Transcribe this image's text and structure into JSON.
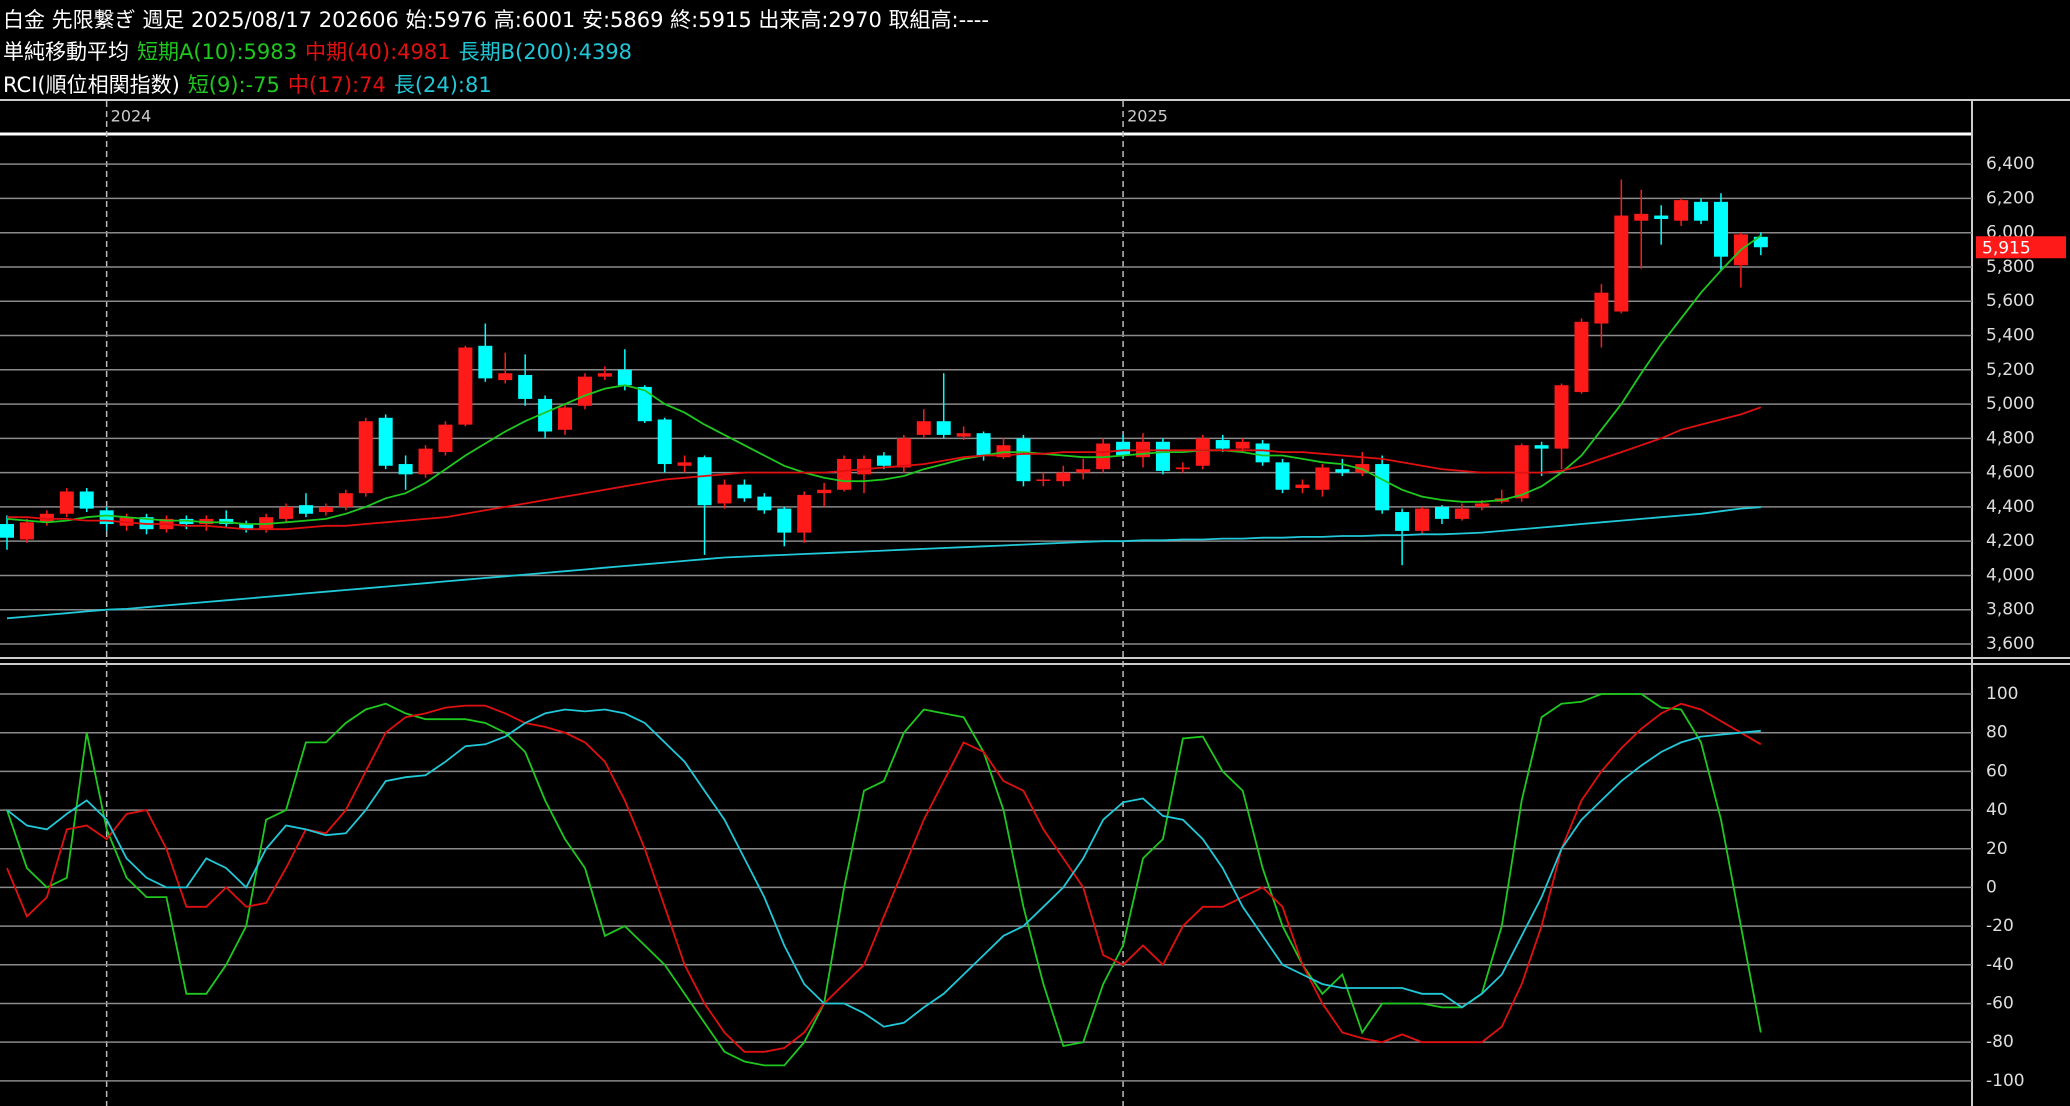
{
  "chart_data": [
    {
      "type": "candlestick",
      "title": "白金 先限繋ぎ 週足 2025/08/17 202606 始:5976 高:6001 安:5869 終:5915 出来高:2970 取組高:----",
      "legend_title": "単純移動平均",
      "categories": [
        null,
        null,
        null,
        null,
        null,
        "2024",
        null,
        null,
        null,
        null,
        null,
        null,
        null,
        null,
        null,
        null,
        null,
        null,
        null,
        null,
        null,
        null,
        null,
        null,
        null,
        null,
        null,
        null,
        null,
        null,
        null,
        null,
        null,
        null,
        null,
        null,
        null,
        null,
        null,
        null,
        null,
        null,
        null,
        null,
        null,
        null,
        null,
        null,
        null,
        null,
        null,
        null,
        null,
        null,
        null,
        null,
        "2025",
        null,
        null,
        null,
        null,
        null,
        null,
        null,
        null,
        null,
        null,
        null,
        null,
        null,
        null,
        null,
        null,
        null,
        null,
        null,
        null,
        null,
        null,
        null,
        null,
        null,
        null,
        null,
        null,
        null,
        null,
        null,
        null
      ],
      "open": [
        4300,
        4210,
        4310,
        4360,
        4490,
        4380,
        4290,
        4340,
        4270,
        4330,
        4300,
        4330,
        4300,
        4270,
        4330,
        4410,
        4370,
        4400,
        4480,
        4920,
        4650,
        4590,
        4720,
        4880,
        5340,
        5140,
        5170,
        5030,
        4850,
        4990,
        5160,
        5200,
        5100,
        4910,
        4640,
        4690,
        4420,
        4530,
        4460,
        4390,
        4250,
        4480,
        4500,
        4590,
        4700,
        4630,
        4820,
        4900,
        4810,
        4830,
        4690,
        4800,
        4560,
        4550,
        4600,
        4620,
        4780,
        4690,
        4780,
        4620,
        4640,
        4790,
        4740,
        4770,
        4660,
        4510,
        4500,
        4620,
        4600,
        4650,
        4370,
        4260,
        4400,
        4330,
        4400,
        4430,
        4450,
        4760,
        4740,
        5070,
        5470,
        5540,
        6070,
        6100,
        6070,
        6180,
        6180,
        5810,
        5976
      ],
      "high": [
        4350,
        4330,
        4380,
        4510,
        4510,
        4400,
        4360,
        4360,
        4350,
        4350,
        4350,
        4380,
        4320,
        4360,
        4420,
        4480,
        4420,
        4500,
        4920,
        4940,
        4700,
        4760,
        4900,
        5340,
        5470,
        5300,
        5290,
        5050,
        5000,
        5180,
        5220,
        5320,
        5110,
        4920,
        4700,
        4700,
        4560,
        4560,
        4480,
        4400,
        4490,
        4540,
        4700,
        4700,
        4720,
        4820,
        4970,
        5180,
        4870,
        4840,
        4800,
        4820,
        4600,
        4640,
        4680,
        4800,
        4820,
        4830,
        4800,
        4660,
        4820,
        4820,
        4800,
        4790,
        4680,
        4560,
        4650,
        4680,
        4720,
        4700,
        4390,
        4400,
        4410,
        4420,
        4440,
        4500,
        4770,
        4780,
        5120,
        5500,
        5700,
        6310,
        6250,
        6160,
        6200,
        6200,
        6230,
        6000,
        6001
      ],
      "low": [
        4150,
        4190,
        4290,
        4340,
        4370,
        4260,
        4260,
        4240,
        4250,
        4270,
        4260,
        4280,
        4250,
        4250,
        4310,
        4340,
        4350,
        4380,
        4460,
        4620,
        4500,
        4570,
        4700,
        4870,
        5130,
        5120,
        4990,
        4800,
        4820,
        4970,
        5140,
        5080,
        4890,
        4600,
        4600,
        4120,
        4390,
        4430,
        4360,
        4170,
        4190,
        4400,
        4490,
        4480,
        4620,
        4600,
        4800,
        4800,
        4790,
        4670,
        4680,
        4520,
        4520,
        4520,
        4560,
        4600,
        4680,
        4630,
        4590,
        4600,
        4620,
        4720,
        4720,
        4640,
        4480,
        4480,
        4460,
        4580,
        4580,
        4360,
        4060,
        4240,
        4300,
        4320,
        4380,
        4420,
        4430,
        4580,
        4620,
        5060,
        5330,
        5530,
        5790,
        5930,
        6040,
        6050,
        5780,
        5680,
        5869
      ],
      "close": [
        4220,
        4310,
        4360,
        4490,
        4390,
        4300,
        4340,
        4270,
        4330,
        4300,
        4330,
        4300,
        4270,
        4340,
        4400,
        4360,
        4400,
        4480,
        4900,
        4640,
        4590,
        4740,
        4880,
        5330,
        5150,
        5180,
        5030,
        4840,
        4980,
        5160,
        5180,
        5110,
        4900,
        4650,
        4660,
        4410,
        4530,
        4450,
        4380,
        4250,
        4470,
        4500,
        4680,
        4680,
        4640,
        4800,
        4900,
        4820,
        4830,
        4700,
        4760,
        4550,
        4560,
        4600,
        4620,
        4770,
        4700,
        4780,
        4610,
        4630,
        4800,
        4740,
        4780,
        4660,
        4500,
        4530,
        4630,
        4600,
        4650,
        4380,
        4260,
        4390,
        4330,
        4390,
        4420,
        4450,
        4760,
        4740,
        5110,
        5480,
        5650,
        6100,
        6110,
        6080,
        6190,
        6070,
        5860,
        5990,
        5915
      ],
      "up_color": "#ff1a1a",
      "down_color": "#00ffff",
      "last_label": "5,915",
      "last_color": "#ff1a1a",
      "series": [
        {
          "name": "短期A(10):5983",
          "color": "#1ec81e",
          "values": [
            4330,
            4320,
            4310,
            4320,
            4340,
            4350,
            4340,
            4330,
            4320,
            4320,
            4310,
            4310,
            4300,
            4300,
            4310,
            4320,
            4330,
            4360,
            4400,
            4450,
            4480,
            4540,
            4620,
            4700,
            4770,
            4840,
            4900,
            4950,
            5000,
            5050,
            5090,
            5110,
            5080,
            5000,
            4950,
            4880,
            4820,
            4760,
            4700,
            4640,
            4600,
            4570,
            4550,
            4550,
            4560,
            4580,
            4620,
            4650,
            4680,
            4700,
            4720,
            4720,
            4710,
            4700,
            4690,
            4690,
            4700,
            4710,
            4720,
            4720,
            4730,
            4730,
            4720,
            4700,
            4700,
            4680,
            4660,
            4650,
            4620,
            4560,
            4500,
            4460,
            4440,
            4430,
            4430,
            4440,
            4470,
            4520,
            4600,
            4700,
            4850,
            5000,
            5180,
            5350,
            5500,
            5650,
            5780,
            5900,
            5983
          ]
        },
        {
          "name": "中期(40):4981",
          "color": "#e01010",
          "values": [
            4340,
            4340,
            4330,
            4330,
            4320,
            4320,
            4310,
            4300,
            4300,
            4290,
            4290,
            4280,
            4270,
            4270,
            4270,
            4280,
            4290,
            4290,
            4300,
            4310,
            4320,
            4330,
            4340,
            4360,
            4380,
            4400,
            4420,
            4440,
            4460,
            4480,
            4500,
            4520,
            4540,
            4560,
            4570,
            4580,
            4590,
            4600,
            4600,
            4600,
            4600,
            4600,
            4610,
            4620,
            4630,
            4640,
            4650,
            4670,
            4690,
            4700,
            4700,
            4710,
            4710,
            4720,
            4720,
            4720,
            4730,
            4730,
            4730,
            4730,
            4730,
            4730,
            4730,
            4730,
            4720,
            4720,
            4710,
            4700,
            4690,
            4680,
            4660,
            4640,
            4620,
            4610,
            4600,
            4600,
            4600,
            4600,
            4610,
            4640,
            4680,
            4720,
            4760,
            4800,
            4850,
            4880,
            4910,
            4940,
            4981
          ]
        },
        {
          "name": "長期B(200):4398",
          "color": "#20c8d8",
          "values": [
            3750,
            3760,
            3770,
            3780,
            3790,
            3800,
            3805,
            3815,
            3825,
            3835,
            3845,
            3855,
            3865,
            3875,
            3885,
            3895,
            3905,
            3915,
            3925,
            3935,
            3945,
            3955,
            3965,
            3975,
            3985,
            3995,
            4005,
            4015,
            4025,
            4035,
            4045,
            4055,
            4065,
            4075,
            4085,
            4095,
            4105,
            4110,
            4115,
            4120,
            4125,
            4130,
            4135,
            4140,
            4145,
            4150,
            4155,
            4160,
            4165,
            4170,
            4175,
            4180,
            4185,
            4190,
            4195,
            4200,
            4200,
            4205,
            4205,
            4210,
            4210,
            4215,
            4215,
            4220,
            4220,
            4225,
            4225,
            4230,
            4230,
            4235,
            4235,
            4240,
            4240,
            4245,
            4250,
            4260,
            4270,
            4280,
            4290,
            4300,
            4310,
            4320,
            4330,
            4340,
            4350,
            4360,
            4375,
            4390,
            4398
          ]
        }
      ],
      "ylim": [
        3530,
        6570
      ],
      "yticks": [
        {
          "value": 3600,
          "label": "3,600"
        },
        {
          "value": 3800,
          "label": "3,800"
        },
        {
          "value": 4000,
          "label": "4,000"
        },
        {
          "value": 4200,
          "label": "4,200"
        },
        {
          "value": 4400,
          "label": "4,400"
        },
        {
          "value": 4600,
          "label": "4,600"
        },
        {
          "value": 4800,
          "label": "4,800"
        },
        {
          "value": 5000,
          "label": "5,000"
        },
        {
          "value": 5200,
          "label": "5,200"
        },
        {
          "value": 5400,
          "label": "5,400"
        },
        {
          "value": 5600,
          "label": "5,600"
        },
        {
          "value": 5800,
          "label": "5,800"
        },
        {
          "value": 6000,
          "label": "6,000"
        },
        {
          "value": 6200,
          "label": "6,200"
        },
        {
          "value": 6400,
          "label": "6,400"
        }
      ],
      "grid": true
    },
    {
      "type": "line",
      "legend_title": "RCI(順位相関指数)",
      "series": [
        {
          "name": "短(9):-75",
          "color": "#1ec81e",
          "values": [
            40,
            10,
            0,
            5,
            80,
            30,
            5,
            -5,
            -5,
            -55,
            -55,
            -40,
            -20,
            35,
            40,
            75,
            75,
            85,
            92,
            95,
            90,
            87,
            87,
            87,
            85,
            80,
            70,
            45,
            25,
            10,
            -25,
            -20,
            -30,
            -40,
            -55,
            -70,
            -85,
            -90,
            -92,
            -92,
            -80,
            -60,
            0,
            50,
            55,
            80,
            92,
            90,
            88,
            70,
            40,
            -10,
            -50,
            -82,
            -80,
            -50,
            -30,
            15,
            25,
            77,
            78,
            60,
            50,
            10,
            -20,
            -40,
            -55,
            -45,
            -75,
            -60,
            -60,
            -60,
            -62,
            -62,
            -55,
            -20,
            45,
            88,
            95,
            96,
            100,
            100,
            100,
            93,
            92,
            75,
            35,
            -20,
            -75
          ]
        },
        {
          "name": "中(17):74",
          "color": "#e01010",
          "values": [
            10,
            -15,
            -5,
            30,
            32,
            25,
            38,
            40,
            20,
            -10,
            -10,
            0,
            -10,
            -8,
            10,
            30,
            28,
            40,
            60,
            80,
            88,
            90,
            93,
            94,
            94,
            90,
            85,
            83,
            80,
            75,
            65,
            45,
            20,
            -10,
            -40,
            -60,
            -75,
            -85,
            -85,
            -83,
            -75,
            -60,
            -50,
            -40,
            -15,
            10,
            35,
            55,
            75,
            70,
            55,
            50,
            30,
            15,
            0,
            -35,
            -40,
            -30,
            -40,
            -20,
            -10,
            -10,
            -5,
            0,
            -10,
            -40,
            -60,
            -75,
            -78,
            -80,
            -76,
            -80,
            -80,
            -80,
            -80,
            -72,
            -50,
            -20,
            20,
            45,
            60,
            72,
            82,
            90,
            95,
            92,
            86,
            80,
            74
          ]
        },
        {
          "name": "長(24):81",
          "color": "#20c8d8",
          "values": [
            40,
            32,
            30,
            38,
            45,
            35,
            15,
            5,
            0,
            0,
            15,
            10,
            0,
            20,
            32,
            30,
            27,
            28,
            40,
            55,
            57,
            58,
            65,
            73,
            74,
            78,
            85,
            90,
            92,
            91,
            92,
            90,
            85,
            75,
            65,
            50,
            35,
            15,
            -5,
            -30,
            -50,
            -60,
            -60,
            -65,
            -72,
            -70,
            -62,
            -55,
            -45,
            -35,
            -25,
            -20,
            -10,
            0,
            15,
            35,
            44,
            46,
            37,
            35,
            25,
            10,
            -10,
            -25,
            -40,
            -45,
            -50,
            -52,
            -52,
            -52,
            -52,
            -55,
            -55,
            -62,
            -55,
            -45,
            -25,
            -5,
            20,
            35,
            45,
            55,
            63,
            70,
            75,
            78,
            79,
            80,
            81
          ]
        }
      ],
      "ylim": [
        -113,
        115
      ],
      "yticks": [
        100,
        80,
        60,
        40,
        20,
        0,
        -20,
        -40,
        -60,
        -80,
        -100
      ],
      "grid": true
    }
  ]
}
